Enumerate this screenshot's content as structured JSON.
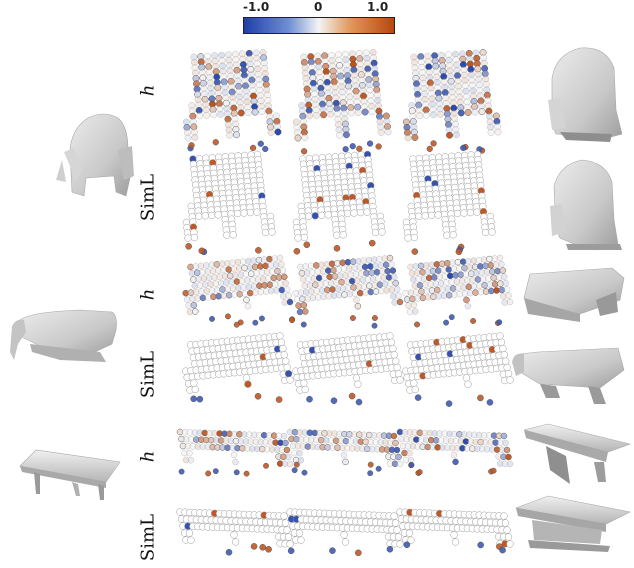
{
  "colorbar": {
    "min_label": "-1.0",
    "mid_label": "0",
    "max_label": "1.0",
    "colors": {
      "neg": "#1f3fa8",
      "mid": "#f4f4f4",
      "pos": "#b8470f"
    }
  },
  "row_labels": [
    "h",
    "SimL",
    "h",
    "SimL",
    "h",
    "SimL"
  ],
  "shapes": [
    "armchair",
    "bench",
    "table"
  ],
  "palette": {
    "mesh_gray": "#cfcfcf",
    "mesh_dark": "#9c9c9c",
    "grid": "#8a8a8a"
  }
}
